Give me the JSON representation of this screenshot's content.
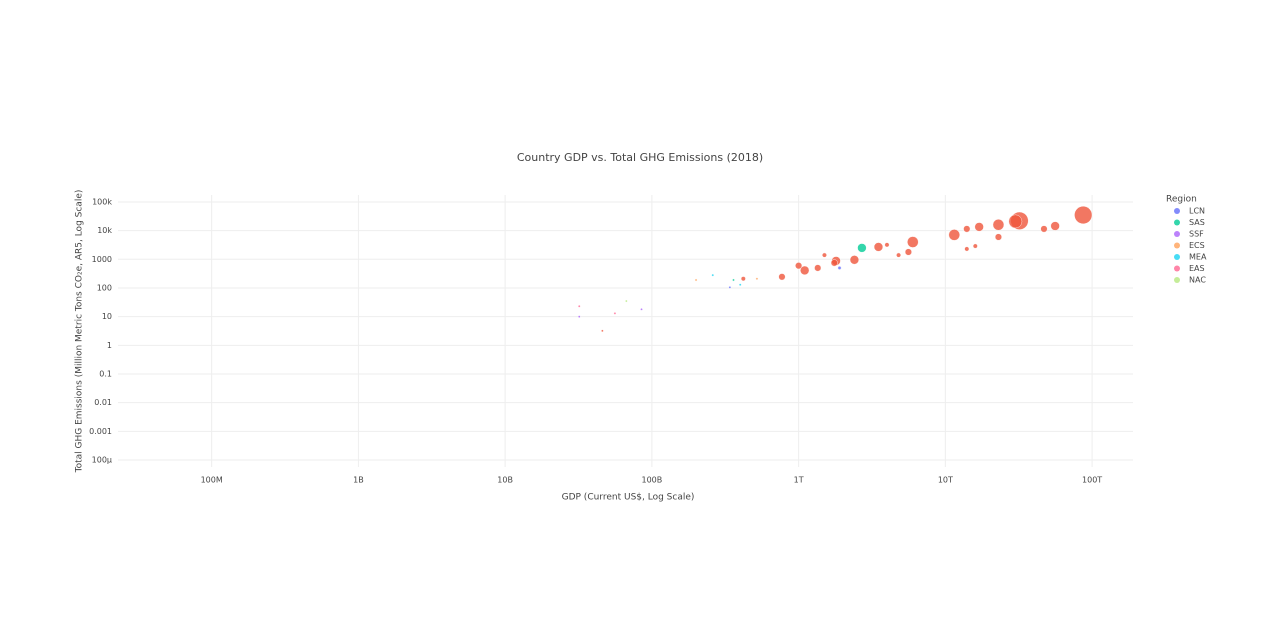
{
  "chart_data": {
    "type": "scatter",
    "title": "Country GDP vs. Total GHG Emissions (2018)",
    "x_label": "GDP (Current US$, Log Scale)",
    "y_label": "Total GHG Emissions (Million Metric Tons CO₂e, AR5, Log Scale)",
    "log_x": true,
    "log_y": true,
    "grid": true,
    "legend_title": "Region",
    "legend_position": "right",
    "xlim": [
      23000000,
      190000000000000
    ],
    "ylim": [
      5.7e-05,
      175000
    ],
    "xticks": [
      {
        "value": 100000000,
        "label": "100M"
      },
      {
        "value": 1000000000,
        "label": "1B"
      },
      {
        "value": 10000000000,
        "label": "10B"
      },
      {
        "value": 100000000000,
        "label": "100B"
      },
      {
        "value": 1000000000000,
        "label": "1T"
      },
      {
        "value": 10000000000000,
        "label": "10T"
      },
      {
        "value": 100000000000000,
        "label": "100T"
      }
    ],
    "yticks": [
      {
        "value": 100000,
        "label": "100k"
      },
      {
        "value": 10000,
        "label": "10k"
      },
      1000,
      100,
      10,
      1,
      0.1,
      0.01,
      0.001,
      {
        "value": 0.0001,
        "label": "100μ"
      }
    ],
    "series": [
      {
        "color": "#EF553B",
        "x": [
          87000000000000,
          32000000000000,
          30000000000000,
          23000000000000,
          17000000000000,
          14000000000000,
          11500000000000,
          6000000000000,
          3500000000000,
          4000000000000,
          56000000000000,
          47000000000000,
          23000000000000,
          16000000000000,
          14000000000000,
          5600000000000,
          4800000000000,
          2400000000000,
          1800000000000,
          1750000000000,
          1500000000000,
          1350000000000,
          1100000000000,
          1000000000000,
          770000000000,
          420000000000,
          46000000000
        ],
        "values": [
          35000,
          22000,
          21000,
          16000,
          13500,
          11500,
          7100,
          4000,
          2700,
          3200,
          14500,
          11500,
          6000,
          2900,
          2300,
          1800,
          1400,
          960,
          880,
          750,
          1400,
          500,
          410,
          600,
          245,
          210,
          3.2
        ],
        "sizes": [
          8,
          8,
          6,
          5,
          4,
          3,
          5,
          5,
          4,
          2,
          4,
          3,
          3,
          2,
          2,
          3,
          2,
          4,
          4,
          3,
          2,
          3,
          4,
          3,
          3,
          2,
          1
        ]
      },
      {
        "name": "LCN",
        "color": "#636efa",
        "x": [
          340000000000,
          1900000000000
        ],
        "values": [
          105,
          500
        ],
        "sizes": [
          1,
          1.5
        ]
      },
      {
        "name": "SAS",
        "color": "#00cc96",
        "x": [
          2700000000000,
          360000000000
        ],
        "values": [
          2500,
          190
        ],
        "sizes": [
          4,
          1
        ]
      },
      {
        "name": "SSF",
        "color": "#ab63fa",
        "x": [
          85000000000,
          32000000000
        ],
        "values": [
          18,
          10
        ],
        "sizes": [
          1,
          1
        ]
      },
      {
        "name": "ECS",
        "color": "#FFA15A",
        "x": [
          520000000000,
          200000000000
        ],
        "values": [
          210,
          190
        ],
        "sizes": [
          1,
          1
        ]
      },
      {
        "name": "MEA",
        "color": "#19d3f3",
        "x": [
          400000000000,
          260000000000
        ],
        "values": [
          130,
          280
        ],
        "sizes": [
          1,
          1
        ]
      },
      {
        "name": "EAS",
        "color": "#FF6692",
        "x": [
          56000000000,
          32000000000
        ],
        "values": [
          13,
          23
        ],
        "sizes": [
          1,
          1
        ]
      },
      {
        "name": "NAC",
        "color": "#B6E880",
        "x": [
          67000000000
        ],
        "values": [
          35
        ],
        "sizes": [
          1
        ]
      }
    ]
  }
}
